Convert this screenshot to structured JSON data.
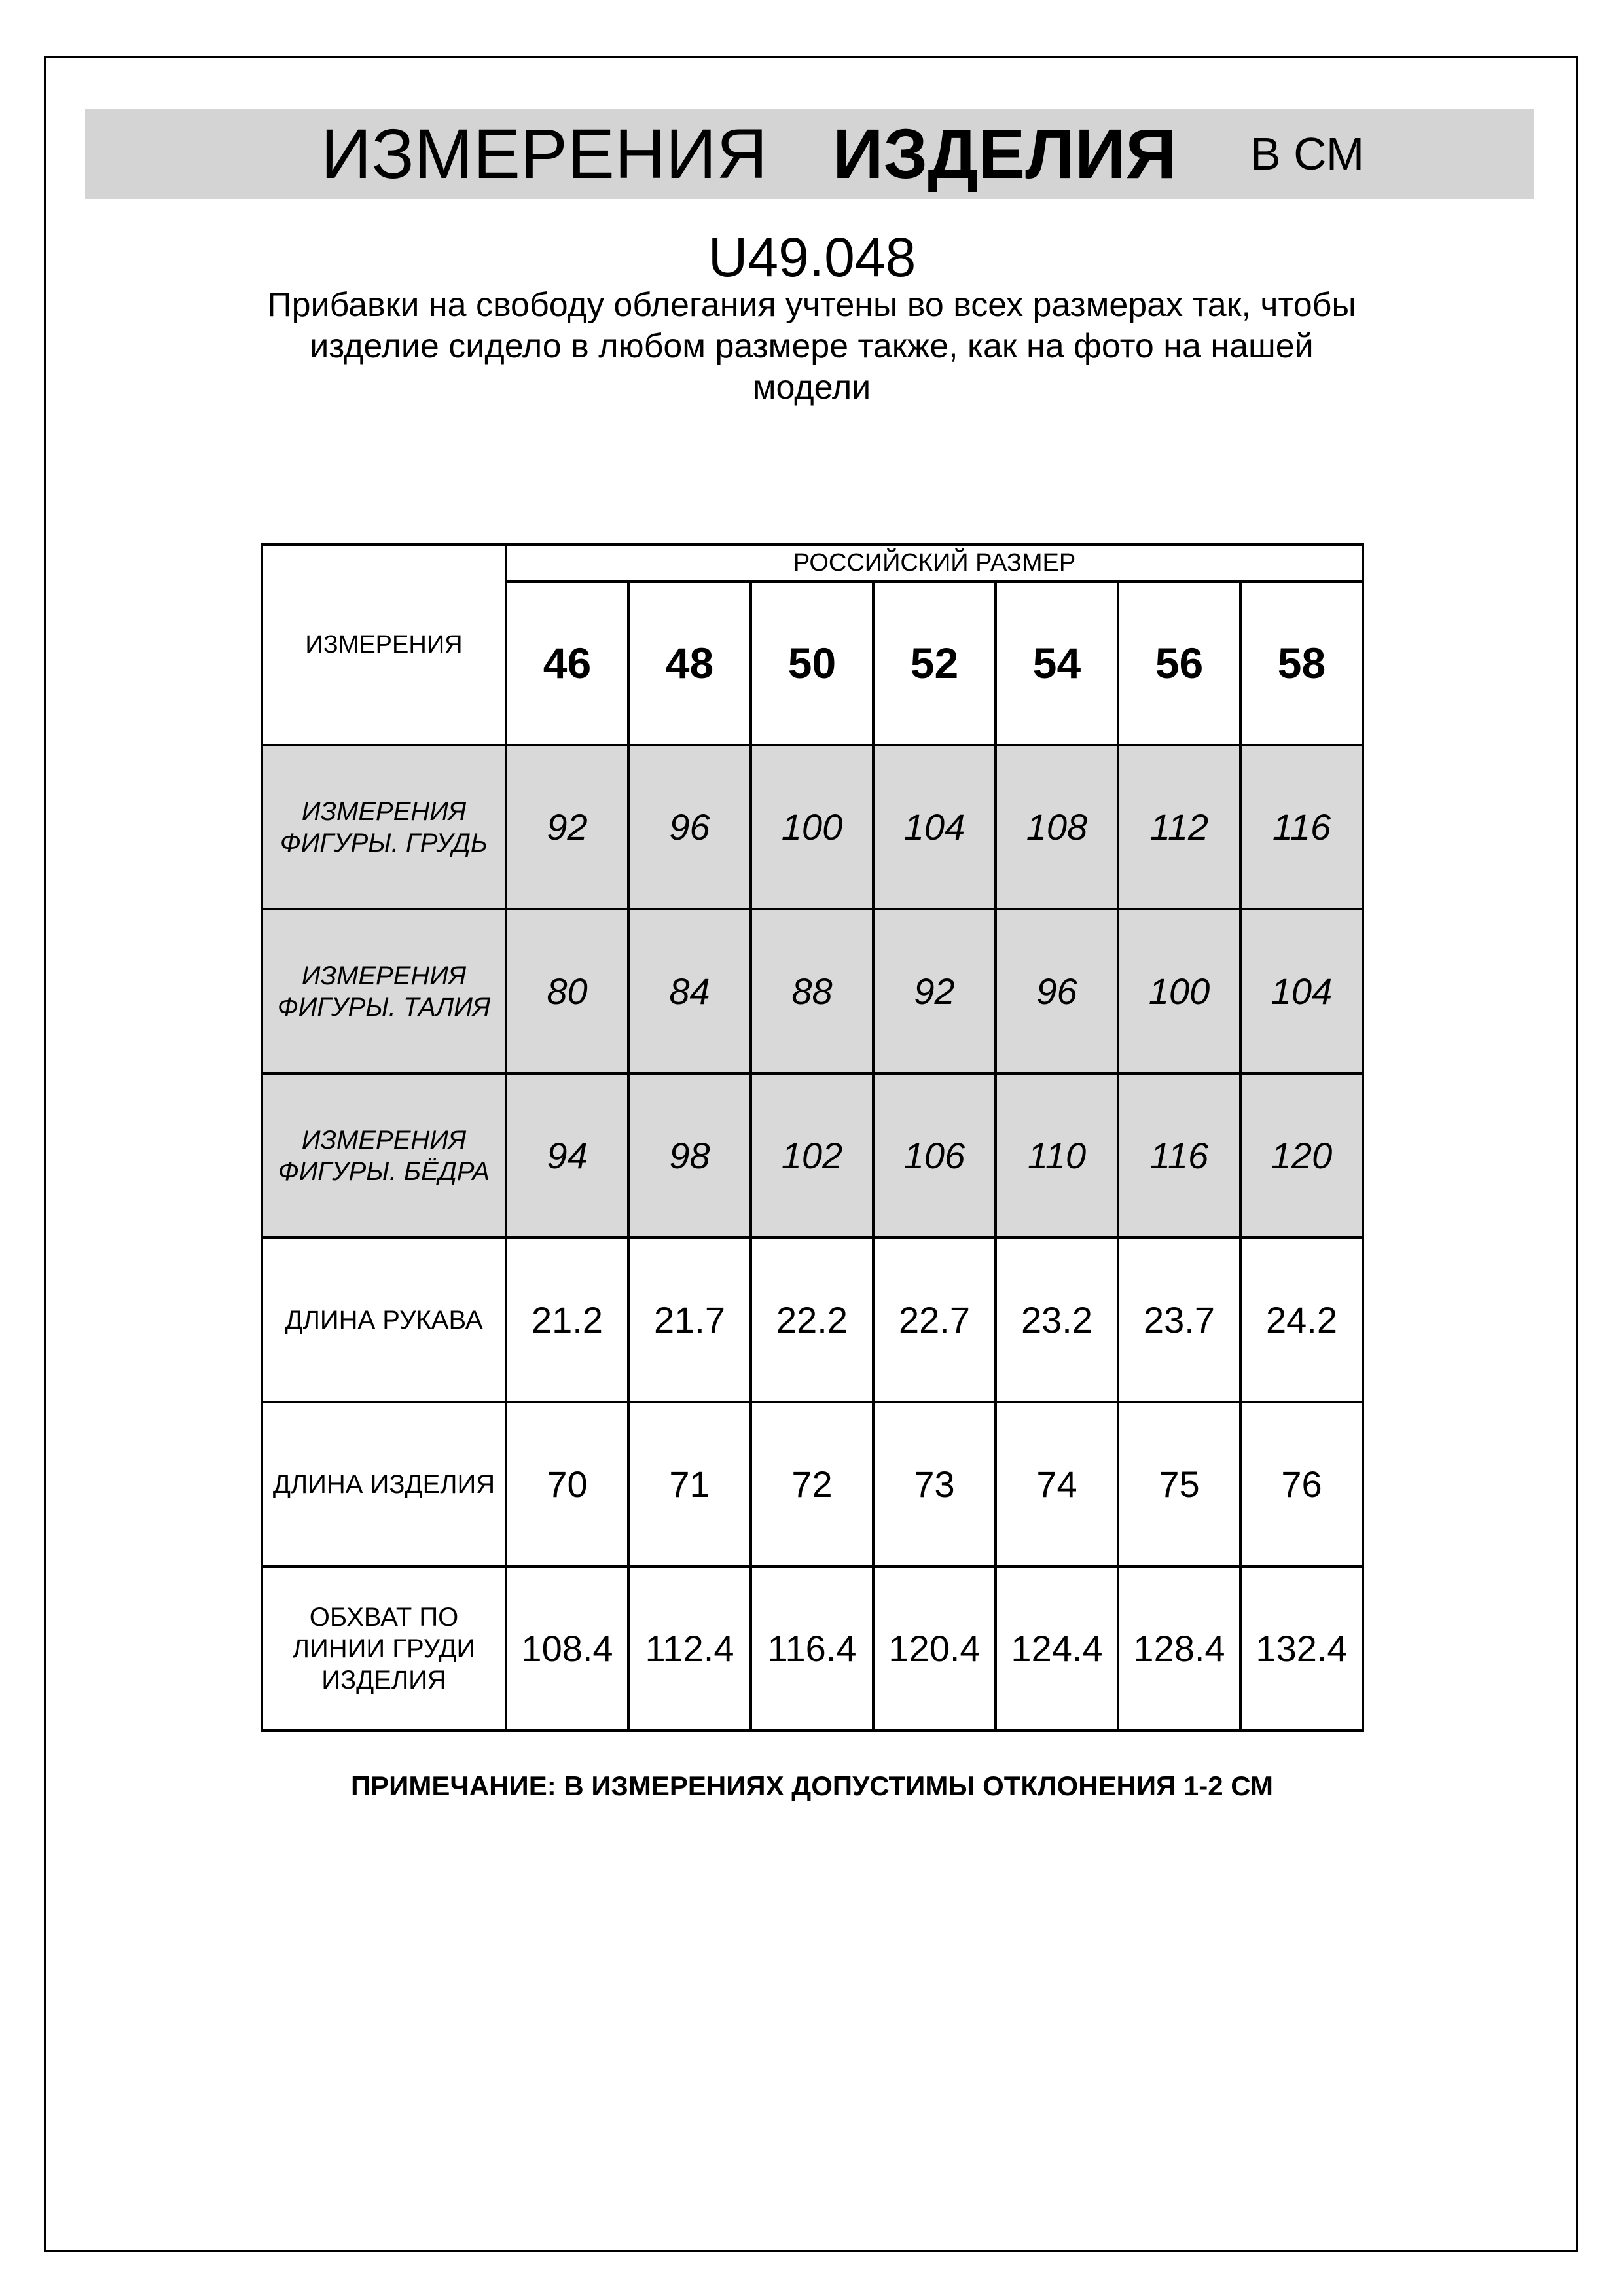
{
  "header": {
    "title_part1": "ИЗМЕРЕНИЯ",
    "title_part2": "ИЗДЕЛИЯ",
    "unit": "В СМ"
  },
  "product_code": "U49.048",
  "description": "Прибавки на свободу облегания учтены во всех размерах так, чтобы изделие сидело в любом размере также, как на фото на нашей модели",
  "table": {
    "corner_label": "ИЗМЕРЕНИЯ",
    "group_header": "РОССИЙСКИЙ РАЗМЕР",
    "sizes": [
      "46",
      "48",
      "50",
      "52",
      "54",
      "56",
      "58"
    ],
    "rows": [
      {
        "label": "ИЗМЕРЕНИЯ ФИГУРЫ. ГРУДЬ",
        "shaded": true,
        "values": [
          "92",
          "96",
          "100",
          "104",
          "108",
          "112",
          "116"
        ]
      },
      {
        "label": "ИЗМЕРЕНИЯ ФИГУРЫ. ТАЛИЯ",
        "shaded": true,
        "values": [
          "80",
          "84",
          "88",
          "92",
          "96",
          "100",
          "104"
        ]
      },
      {
        "label": "ИЗМЕРЕНИЯ ФИГУРЫ. БЁДРА",
        "shaded": true,
        "values": [
          "94",
          "98",
          "102",
          "106",
          "110",
          "116",
          "120"
        ]
      },
      {
        "label": "ДЛИНА РУКАВА",
        "shaded": false,
        "values": [
          "21.2",
          "21.7",
          "22.2",
          "22.7",
          "23.2",
          "23.7",
          "24.2"
        ]
      },
      {
        "label": "ДЛИНА ИЗДЕЛИЯ",
        "shaded": false,
        "values": [
          "70",
          "71",
          "72",
          "73",
          "74",
          "75",
          "76"
        ]
      },
      {
        "label": "ОБХВАТ ПО ЛИНИИ ГРУДИ ИЗДЕЛИЯ",
        "shaded": false,
        "values": [
          "108.4",
          "112.4",
          "116.4",
          "120.4",
          "124.4",
          "128.4",
          "132.4"
        ]
      }
    ]
  },
  "note": "ПРИМЕЧАНИЕ: В ИЗМЕРЕНИЯХ ДОПУСТИМЫ ОТКЛОНЕНИЯ 1-2 СМ",
  "colors": {
    "title_bar": "#d4d4d4",
    "shaded_row": "#d9d9d9"
  }
}
